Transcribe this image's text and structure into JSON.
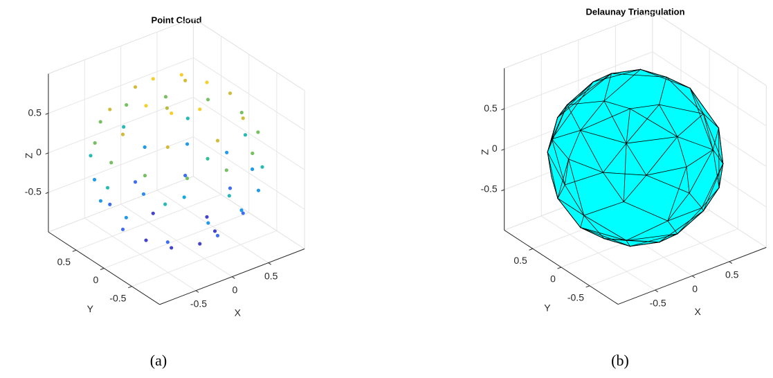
{
  "chart_data": [
    {
      "type": "scatter3d",
      "title": "Point Cloud",
      "xlabel": "X",
      "ylabel": "Y",
      "zlabel": "Z",
      "colormap": [
        "#3e26a8",
        "#4a5ef1",
        "#2e87f7",
        "#10b1d9",
        "#3bc28e",
        "#a6be3c",
        "#f0b93a",
        "#f9e71e"
      ],
      "x": [
        0.42,
        0,
        -0.42,
        0,
        0.3,
        -0.3,
        0.74,
        0.52,
        0,
        -0.52,
        -0.74,
        -0.52,
        0,
        0.52,
        0.9,
        0.78,
        0.45,
        0,
        -0.45,
        -0.78,
        -0.9,
        -0.78,
        -0.45,
        0,
        0.45,
        0.78,
        0.67,
        -0.67,
        -0.67,
        0.67,
        0.95,
        0,
        -0.95,
        0,
        0.87,
        0.23,
        -0.64,
        -0.87,
        -0.23,
        0.64,
        0.64,
        -0.87,
        0.23,
        0.87,
        0.74,
        0,
        -0.74,
        0,
        0.52,
        -0.52,
        0.52,
        -0.52,
        0.42,
        0,
        -0.42,
        0,
        -0.3,
        0.3,
        0.2,
        -0.3,
        0.1,
        -0.2
      ],
      "y": [
        0,
        0.42,
        0,
        -0.42,
        0.3,
        -0.3,
        0,
        0.52,
        0.74,
        0.52,
        0,
        -0.52,
        -0.74,
        -0.52,
        0,
        0.45,
        0.78,
        0.9,
        0.78,
        0.45,
        0,
        -0.45,
        -0.78,
        -0.9,
        -0.78,
        -0.45,
        0.67,
        0.67,
        -0.67,
        -0.67,
        0,
        0.95,
        0,
        -0.95,
        0.23,
        0.87,
        0.64,
        -0.23,
        -0.87,
        -0.64,
        0.64,
        0.23,
        -0.87,
        -0.23,
        0,
        0.74,
        0,
        -0.74,
        -0.52,
        -0.52,
        0.52,
        0.52,
        0,
        -0.42,
        0,
        0.42,
        -0.3,
        -0.3,
        -0.3,
        0.2,
        0.3,
        -0.4
      ],
      "z": [
        0.85,
        0.85,
        0.85,
        0.85,
        0.85,
        0.85,
        0.6,
        0.6,
        0.6,
        0.6,
        0.6,
        0.6,
        0.6,
        0.6,
        0.3,
        0.3,
        0.3,
        0.3,
        0.3,
        0.3,
        0.3,
        0.3,
        0.3,
        0.3,
        0.3,
        0.3,
        0,
        0,
        0,
        0,
        0,
        0,
        0,
        0,
        -0.3,
        -0.3,
        -0.3,
        -0.3,
        -0.3,
        -0.3,
        -0.3,
        -0.3,
        -0.3,
        -0.3,
        -0.6,
        -0.6,
        -0.6,
        -0.6,
        -0.6,
        -0.6,
        -0.6,
        -0.6,
        -0.85,
        -0.85,
        -0.85,
        -0.85,
        -0.85,
        -0.85,
        0.1,
        -0.4,
        0.5,
        -0.2
      ],
      "xlim": [
        -1,
        1
      ],
      "ylim": [
        -1,
        1
      ],
      "zlim": [
        -1,
        1
      ],
      "xticks": [
        -0.5,
        0,
        0.5
      ],
      "yticks": [
        -0.5,
        0,
        0.5
      ],
      "zticks": [
        -0.5,
        0,
        0.5
      ],
      "grid": true
    },
    {
      "type": "mesh3d",
      "title": "Delaunay Triangulation",
      "xlabel": "X",
      "ylabel": "Y",
      "zlabel": "Z",
      "color": "#00ffff",
      "edge_color": "#000000",
      "x": [
        0.42,
        0,
        -0.42,
        0,
        0.3,
        -0.3,
        0.74,
        0.52,
        0,
        -0.52,
        -0.74,
        -0.52,
        0,
        0.52,
        0.9,
        0.78,
        0.45,
        0,
        -0.45,
        -0.78,
        -0.9,
        -0.78,
        -0.45,
        0,
        0.45,
        0.78,
        0.67,
        -0.67,
        -0.67,
        0.67,
        0.95,
        0,
        -0.95,
        0,
        0.87,
        0.23,
        -0.64,
        -0.87,
        -0.23,
        0.64,
        0.64,
        -0.87,
        0.23,
        0.87,
        0.74,
        0,
        -0.74,
        0,
        0.52,
        -0.52,
        0.52,
        -0.52,
        0.42,
        0,
        -0.42,
        0,
        -0.3,
        0.3
      ],
      "y": [
        0,
        0.42,
        0,
        -0.42,
        0.3,
        -0.3,
        0,
        0.52,
        0.74,
        0.52,
        0,
        -0.52,
        -0.74,
        -0.52,
        0,
        0.45,
        0.78,
        0.9,
        0.78,
        0.45,
        0,
        -0.45,
        -0.78,
        -0.9,
        -0.78,
        -0.45,
        0.67,
        0.67,
        -0.67,
        -0.67,
        0,
        0.95,
        0,
        -0.95,
        0.23,
        0.87,
        0.64,
        -0.23,
        -0.87,
        -0.64,
        0.64,
        0.23,
        -0.87,
        -0.23,
        0,
        0.74,
        0,
        -0.74,
        -0.52,
        -0.52,
        0.52,
        0.52,
        0,
        -0.42,
        0,
        0.42,
        -0.3,
        -0.3
      ],
      "z": [
        0.85,
        0.85,
        0.85,
        0.85,
        0.85,
        0.85,
        0.6,
        0.6,
        0.6,
        0.6,
        0.6,
        0.6,
        0.6,
        0.6,
        0.3,
        0.3,
        0.3,
        0.3,
        0.3,
        0.3,
        0.3,
        0.3,
        0.3,
        0.3,
        0.3,
        0.3,
        0,
        0,
        0,
        0,
        0,
        0,
        0,
        0,
        -0.3,
        -0.3,
        -0.3,
        -0.3,
        -0.3,
        -0.3,
        -0.3,
        -0.3,
        -0.3,
        -0.3,
        -0.6,
        -0.6,
        -0.6,
        -0.6,
        -0.6,
        -0.6,
        -0.6,
        -0.6,
        -0.85,
        -0.85,
        -0.85,
        -0.85,
        -0.85,
        -0.85
      ],
      "xlim": [
        -1,
        1
      ],
      "ylim": [
        -1,
        1
      ],
      "zlim": [
        -1,
        1
      ],
      "xticks": [
        -0.5,
        0,
        0.5
      ],
      "yticks": [
        -0.5,
        0,
        0.5
      ],
      "zticks": [
        -0.5,
        0,
        0.5
      ],
      "grid": true
    }
  ],
  "captions": [
    "(a)",
    "(b)"
  ]
}
